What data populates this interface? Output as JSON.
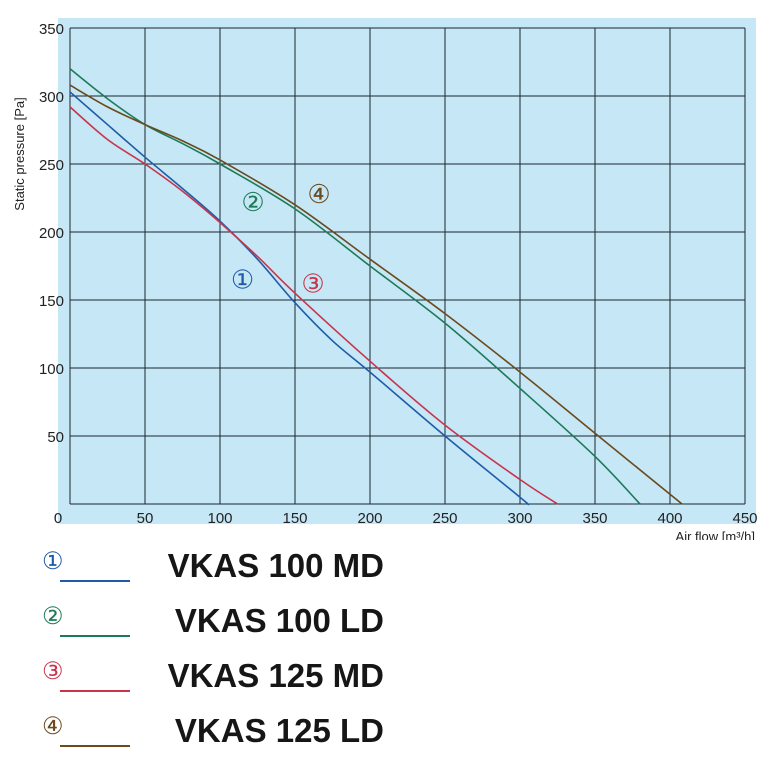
{
  "chart_data": {
    "type": "line",
    "title": "",
    "xlabel": "Air flow [m³/h]",
    "ylabel": "Static pressure [Pa]",
    "xlim": [
      0,
      450
    ],
    "ylim": [
      0,
      350
    ],
    "xticks": [
      0,
      50,
      100,
      150,
      200,
      250,
      300,
      350,
      400,
      450
    ],
    "yticks": [
      50,
      100,
      150,
      200,
      250,
      300,
      350
    ],
    "grid": true,
    "legend_position": "bottom",
    "series": [
      {
        "id": "1",
        "marker": "①",
        "name": "VKAS 100 MD",
        "color": "#1f5ca8",
        "label_at": [
          115,
          165
        ],
        "x": [
          0,
          25,
          50,
          75,
          100,
          125,
          150,
          175,
          200,
          250,
          300,
          305
        ],
        "y": [
          303,
          279,
          255,
          232,
          208,
          180,
          148,
          120,
          97,
          50,
          5,
          0
        ]
      },
      {
        "id": "2",
        "marker": "②",
        "name": "VKAS 100 LD",
        "color": "#1d7a57",
        "label_at": [
          122,
          222
        ],
        "x": [
          0,
          25,
          50,
          75,
          100,
          150,
          200,
          250,
          300,
          350,
          380
        ],
        "y": [
          320,
          298,
          279,
          265,
          250,
          217,
          175,
          133,
          85,
          35,
          0
        ]
      },
      {
        "id": "3",
        "marker": "③",
        "name": "VKAS 125 MD",
        "color": "#c8344c",
        "label_at": [
          162,
          162
        ],
        "x": [
          0,
          25,
          50,
          75,
          100,
          125,
          150,
          200,
          250,
          300,
          325
        ],
        "y": [
          292,
          268,
          250,
          230,
          207,
          182,
          155,
          105,
          58,
          18,
          0
        ]
      },
      {
        "id": "4",
        "marker": "④",
        "name": "VKAS 125 LD",
        "color": "#6b4a1c",
        "label_at": [
          166,
          228
        ],
        "x": [
          0,
          25,
          50,
          75,
          100,
          150,
          200,
          250,
          300,
          350,
          408
        ],
        "y": [
          308,
          292,
          279,
          267,
          253,
          220,
          180,
          140,
          97,
          52,
          0
        ]
      }
    ]
  }
}
